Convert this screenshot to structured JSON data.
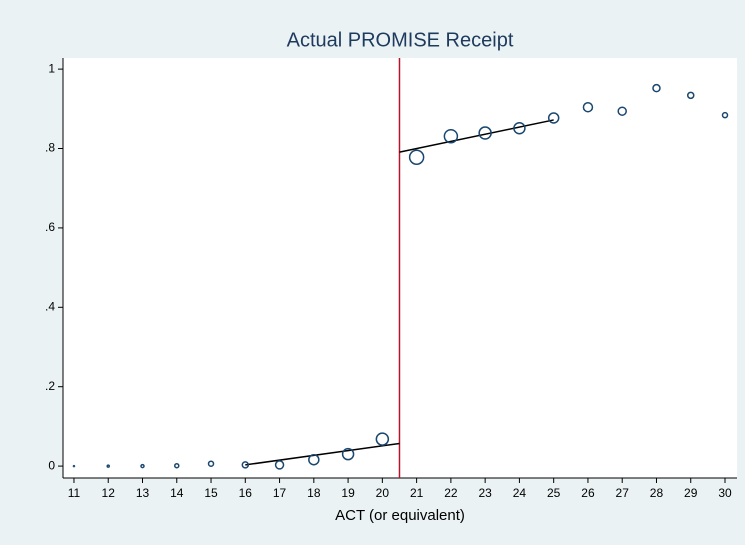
{
  "chart_data": {
    "type": "scatter",
    "title": "Actual PROMISE Receipt",
    "x_label": "ACT (or equivalent)",
    "x": [
      11,
      12,
      13,
      14,
      15,
      16,
      17,
      18,
      19,
      20,
      21,
      22,
      23,
      24,
      25,
      26,
      27,
      28,
      29,
      30
    ],
    "values": [
      0,
      0,
      0,
      0.001,
      0.006,
      0.003,
      0.003,
      0.016,
      0.03,
      0.068,
      0.778,
      0.831,
      0.839,
      0.851,
      0.877,
      0.904,
      0.894,
      0.952,
      0.934,
      0.884
    ],
    "sizes": [
      0.5,
      1,
      1.5,
      2,
      2.5,
      3,
      4,
      5,
      5.5,
      6,
      7,
      6.5,
      6,
      5.5,
      5,
      4.5,
      4,
      3.5,
      3,
      2.5
    ],
    "color": "#1a476f",
    "fit_lines": [
      {
        "x": [
          16,
          20.5
        ],
        "values": [
          0.003,
          0.057
        ],
        "color": "#000000"
      },
      {
        "x": [
          20.5,
          25
        ],
        "values": [
          0.791,
          0.872
        ],
        "color": "#000000"
      }
    ],
    "vline": {
      "x": 20.5,
      "color": "#b5152b"
    },
    "xlim": [
      10.68,
      30.35
    ],
    "ylim": [
      -0.03,
      1.028
    ],
    "xticks": [
      11,
      12,
      13,
      14,
      15,
      16,
      17,
      18,
      19,
      20,
      21,
      22,
      23,
      24,
      25,
      26,
      27,
      28,
      29,
      30
    ],
    "yticks": [
      0,
      {
        "value": 0.2,
        "label": ".2"
      },
      {
        "value": 0.4,
        "label": ".4"
      },
      {
        "value": 0.6,
        "label": ".6"
      },
      {
        "value": 0.8,
        "label": ".8"
      },
      1
    ],
    "grid": false
  }
}
